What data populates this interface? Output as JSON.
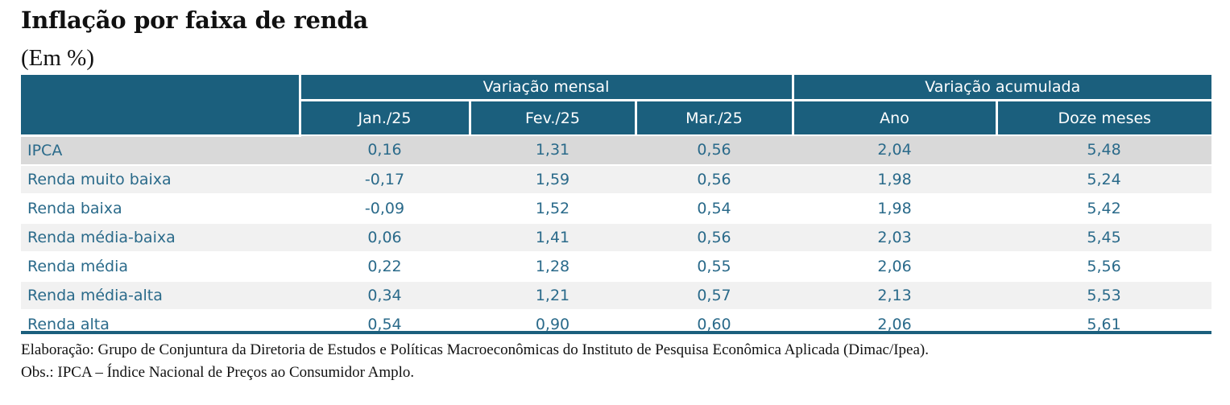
{
  "title": "Inflação por faixa de renda",
  "subtitle": "(Em %)",
  "table": {
    "group_headers": [
      "Variação mensal",
      "Variação acumulada"
    ],
    "column_headers": [
      "Jan./25",
      "Fev./25",
      "Mar./25",
      "Ano",
      "Doze meses"
    ],
    "rows": [
      {
        "label": "IPCA",
        "values": [
          "0,16",
          "1,31",
          "0,56",
          "2,04",
          "5,48"
        ]
      },
      {
        "label": "Renda muito baixa",
        "values": [
          "-0,17",
          "1,59",
          "0,56",
          "1,98",
          "5,24"
        ]
      },
      {
        "label": "Renda baixa",
        "values": [
          "-0,09",
          "1,52",
          "0,54",
          "1,98",
          "5,42"
        ]
      },
      {
        "label": "Renda média-baixa",
        "values": [
          "0,06",
          "1,41",
          "0,56",
          "2,03",
          "5,45"
        ]
      },
      {
        "label": "Renda média",
        "values": [
          "0,22",
          "1,28",
          "0,55",
          "2,06",
          "5,56"
        ]
      },
      {
        "label": "Renda média-alta",
        "values": [
          "0,34",
          "1,21",
          "0,57",
          "2,13",
          "5,53"
        ]
      },
      {
        "label": "Renda alta",
        "values": [
          "0,54",
          "0,90",
          "0,60",
          "2,06",
          "5,61"
        ]
      }
    ]
  },
  "notes": {
    "source": "Elaboração: Grupo de Conjuntura da Diretoria de Estudos e Políticas Macroeconômicas do Instituto de Pesquisa Econômica Aplicada (Dimac/Ipea).",
    "obs": "Obs.: IPCA – Índice Nacional de Preços ao Consumidor Amplo."
  },
  "colors": {
    "header_bg": "#1b5f7d",
    "header_text": "#ffffff",
    "body_text": "#2a6a8a",
    "highlight_row": "#d9d9d9",
    "stripe_row": "#f1f1f1"
  }
}
